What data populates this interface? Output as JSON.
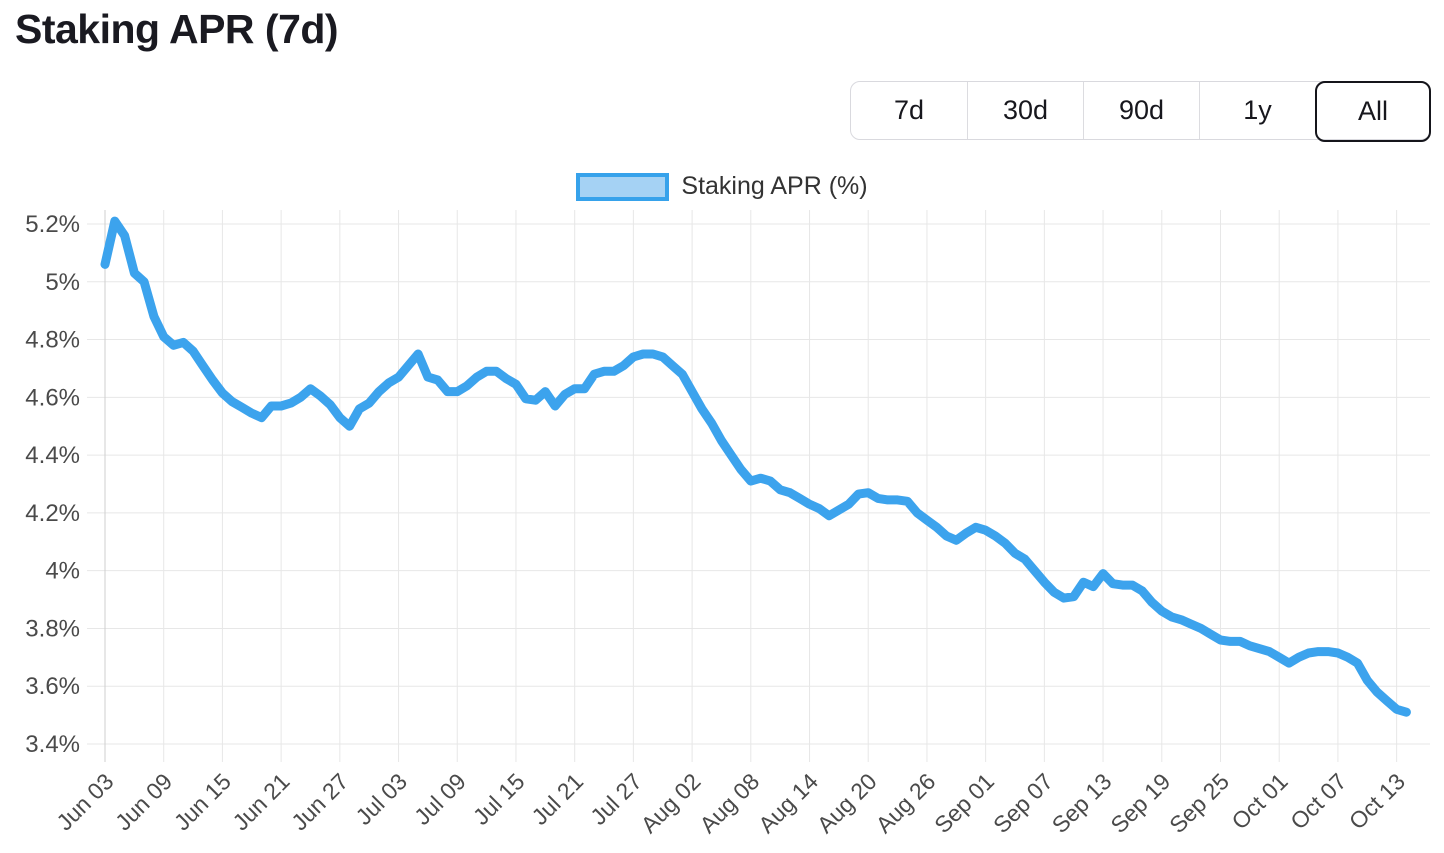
{
  "page": {
    "title": "Staking APR (7d)"
  },
  "time_range": {
    "options": [
      "7d",
      "30d",
      "90d",
      "1y",
      "All"
    ],
    "selected": "All"
  },
  "legend": {
    "label": "Staking APR (%)"
  },
  "colors": {
    "line": "#3CA3ED",
    "legend_fill": "#A5D2F4",
    "legend_border": "#36A2EB",
    "grid": "#E7E7E7",
    "axis_line": "#CFCFCF",
    "tick_text": "#4A4A4A",
    "title_text": "#1A1A21"
  },
  "chart_data": {
    "type": "line",
    "title": "Staking APR (7d)",
    "ylabel": "Staking APR (%)",
    "xlabel": "",
    "ylim": [
      3.4,
      5.2
    ],
    "grid": true,
    "legend_position": "top",
    "y_ticks": [
      "5.2%",
      "5%",
      "4.8%",
      "4.6%",
      "4.4%",
      "4.2%",
      "4%",
      "3.8%",
      "3.6%",
      "3.4%"
    ],
    "y_tick_values": [
      5.2,
      5.0,
      4.8,
      4.6,
      4.4,
      4.2,
      4.0,
      3.8,
      3.6,
      3.4
    ],
    "x_tick_labels": [
      "Jun 03",
      "Jun 09",
      "Jun 15",
      "Jun 21",
      "Jun 27",
      "Jul 03",
      "Jul 09",
      "Jul 15",
      "Jul 21",
      "Jul 27",
      "Aug 02",
      "Aug 08",
      "Aug 14",
      "Aug 20",
      "Aug 26",
      "Sep 01",
      "Sep 07",
      "Sep 13",
      "Sep 19",
      "Sep 25",
      "Oct 01",
      "Oct 07",
      "Oct 13"
    ],
    "x_tick_every": 6,
    "x": [
      "Jun 03",
      "Jun 04",
      "Jun 05",
      "Jun 06",
      "Jun 07",
      "Jun 08",
      "Jun 09",
      "Jun 10",
      "Jun 11",
      "Jun 12",
      "Jun 13",
      "Jun 14",
      "Jun 15",
      "Jun 16",
      "Jun 17",
      "Jun 18",
      "Jun 19",
      "Jun 20",
      "Jun 21",
      "Jun 22",
      "Jun 23",
      "Jun 24",
      "Jun 25",
      "Jun 26",
      "Jun 27",
      "Jun 28",
      "Jun 29",
      "Jun 30",
      "Jul 01",
      "Jul 02",
      "Jul 03",
      "Jul 04",
      "Jul 05",
      "Jul 06",
      "Jul 07",
      "Jul 08",
      "Jul 09",
      "Jul 10",
      "Jul 11",
      "Jul 12",
      "Jul 13",
      "Jul 14",
      "Jul 15",
      "Jul 16",
      "Jul 17",
      "Jul 18",
      "Jul 19",
      "Jul 20",
      "Jul 21",
      "Jul 22",
      "Jul 23",
      "Jul 24",
      "Jul 25",
      "Jul 26",
      "Jul 27",
      "Jul 28",
      "Jul 29",
      "Jul 30",
      "Jul 31",
      "Aug 01",
      "Aug 02",
      "Aug 03",
      "Aug 04",
      "Aug 05",
      "Aug 06",
      "Aug 07",
      "Aug 08",
      "Aug 09",
      "Aug 10",
      "Aug 11",
      "Aug 12",
      "Aug 13",
      "Aug 14",
      "Aug 15",
      "Aug 16",
      "Aug 17",
      "Aug 18",
      "Aug 19",
      "Aug 20",
      "Aug 21",
      "Aug 22",
      "Aug 23",
      "Aug 24",
      "Aug 25",
      "Aug 26",
      "Aug 27",
      "Aug 28",
      "Aug 29",
      "Aug 30",
      "Aug 31",
      "Sep 01",
      "Sep 02",
      "Sep 03",
      "Sep 04",
      "Sep 05",
      "Sep 06",
      "Sep 07",
      "Sep 08",
      "Sep 09",
      "Sep 10",
      "Sep 11",
      "Sep 12",
      "Sep 13",
      "Sep 14",
      "Sep 15",
      "Sep 16",
      "Sep 17",
      "Sep 18",
      "Sep 19",
      "Sep 20",
      "Sep 21",
      "Sep 22",
      "Sep 23",
      "Sep 24",
      "Sep 25",
      "Sep 26",
      "Sep 27",
      "Sep 28",
      "Sep 29",
      "Sep 30",
      "Oct 01",
      "Oct 02",
      "Oct 03",
      "Oct 04",
      "Oct 05",
      "Oct 06",
      "Oct 07",
      "Oct 08",
      "Oct 09",
      "Oct 10",
      "Oct 11",
      "Oct 12",
      "Oct 13",
      "Oct 14"
    ],
    "series": [
      {
        "name": "Staking APR (%)",
        "values": [
          5.06,
          5.21,
          5.16,
          5.03,
          5.0,
          4.88,
          4.81,
          4.78,
          4.79,
          4.76,
          4.71,
          4.66,
          4.615,
          4.585,
          4.565,
          4.545,
          4.53,
          4.57,
          4.57,
          4.58,
          4.6,
          4.63,
          4.605,
          4.575,
          4.53,
          4.5,
          4.56,
          4.58,
          4.62,
          4.65,
          4.67,
          4.71,
          4.75,
          4.67,
          4.66,
          4.62,
          4.62,
          4.64,
          4.67,
          4.69,
          4.69,
          4.665,
          4.645,
          4.595,
          4.59,
          4.62,
          4.57,
          4.61,
          4.63,
          4.63,
          4.68,
          4.69,
          4.69,
          4.71,
          4.74,
          4.75,
          4.75,
          4.74,
          4.71,
          4.68,
          4.62,
          4.56,
          4.51,
          4.45,
          4.4,
          4.35,
          4.31,
          4.32,
          4.31,
          4.28,
          4.27,
          4.25,
          4.23,
          4.215,
          4.19,
          4.21,
          4.23,
          4.265,
          4.27,
          4.25,
          4.245,
          4.245,
          4.24,
          4.2,
          4.175,
          4.15,
          4.12,
          4.105,
          4.13,
          4.15,
          4.14,
          4.12,
          4.095,
          4.06,
          4.04,
          4.0,
          3.96,
          3.925,
          3.905,
          3.91,
          3.96,
          3.945,
          3.99,
          3.955,
          3.95,
          3.95,
          3.93,
          3.89,
          3.86,
          3.84,
          3.83,
          3.815,
          3.8,
          3.78,
          3.76,
          3.755,
          3.755,
          3.74,
          3.73,
          3.72,
          3.7,
          3.68,
          3.7,
          3.715,
          3.72,
          3.72,
          3.715,
          3.7,
          3.68,
          3.62,
          3.58,
          3.55,
          3.52,
          3.51
        ]
      }
    ]
  }
}
